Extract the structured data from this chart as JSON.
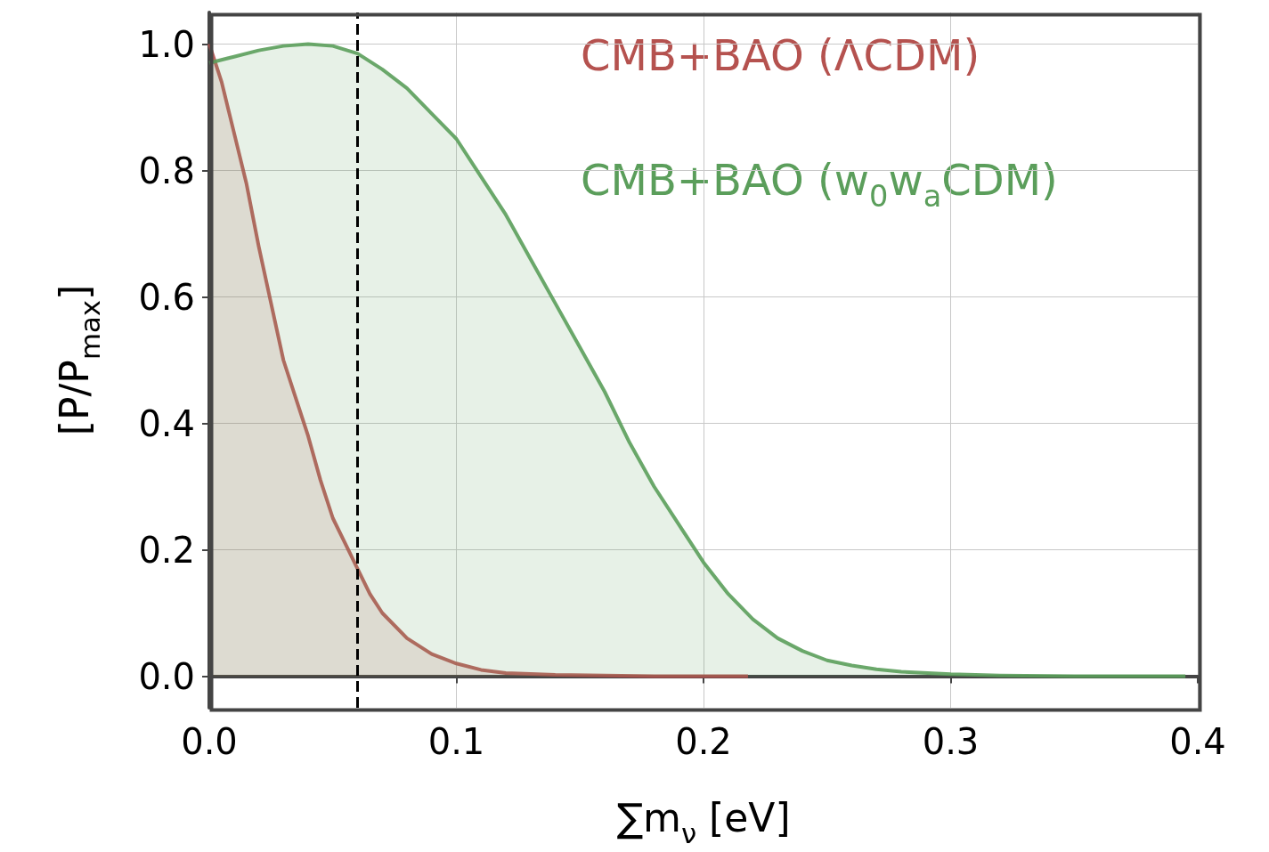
{
  "chart_data": {
    "type": "area",
    "xlabel": "∑m$_{ν}$ [eV]",
    "ylabel": "[P/P$_{max}$]",
    "xlim": [
      0,
      0.4
    ],
    "xticks": [
      {
        "value": 0,
        "label": "0.0"
      },
      0.1,
      0.2,
      0.3,
      0.4
    ],
    "ylim": [
      -0.05,
      1.05
    ],
    "yticks": [
      {
        "value": 0,
        "label": "0.0"
      },
      0.2,
      0.4,
      0.6,
      0.8,
      {
        "value": 1,
        "label": "1.0"
      }
    ],
    "grid": true,
    "marker": "none",
    "line_style": "solid",
    "series": [
      {
        "name": "CMB+BAO (ΛCDM)",
        "color": "#b5524f",
        "x": [
          0,
          0.005,
          0.01,
          0.015,
          0.02,
          0.025,
          0.03,
          0.035,
          0.04,
          0.045,
          0.05,
          0.055,
          0.06,
          0.065,
          0.07,
          0.08,
          0.09,
          0.1,
          0.11,
          0.12,
          0.14,
          0.16,
          0.18,
          0.2,
          0.218
        ],
        "values": [
          1.0,
          0.94,
          0.86,
          0.78,
          0.68,
          0.59,
          0.5,
          0.44,
          0.38,
          0.31,
          0.25,
          0.21,
          0.17,
          0.13,
          0.1,
          0.06,
          0.035,
          0.02,
          0.01,
          0.005,
          0.002,
          0.001,
          0,
          0,
          0
        ]
      },
      {
        "name": "CMB+BAO (w$_{0}$w$_{a}$CDM)",
        "color": "#5b9e5b",
        "x": [
          0,
          0.01,
          0.02,
          0.03,
          0.04,
          0.05,
          0.06,
          0.07,
          0.08,
          0.09,
          0.1,
          0.11,
          0.12,
          0.13,
          0.14,
          0.15,
          0.16,
          0.17,
          0.18,
          0.19,
          0.2,
          0.21,
          0.22,
          0.23,
          0.24,
          0.25,
          0.26,
          0.27,
          0.28,
          0.3,
          0.32,
          0.35,
          0.395
        ],
        "values": [
          0.97,
          0.98,
          0.99,
          0.997,
          1.0,
          0.997,
          0.985,
          0.96,
          0.93,
          0.89,
          0.85,
          0.79,
          0.73,
          0.66,
          0.59,
          0.52,
          0.45,
          0.37,
          0.3,
          0.24,
          0.18,
          0.13,
          0.09,
          0.06,
          0.04,
          0.025,
          0.017,
          0.011,
          0.007,
          0.003,
          0.001,
          0,
          0
        ]
      }
    ],
    "ref_lines": [
      {
        "axis": "x",
        "value": 0.06,
        "color": "#000000",
        "line_style": "dashed"
      }
    ]
  }
}
